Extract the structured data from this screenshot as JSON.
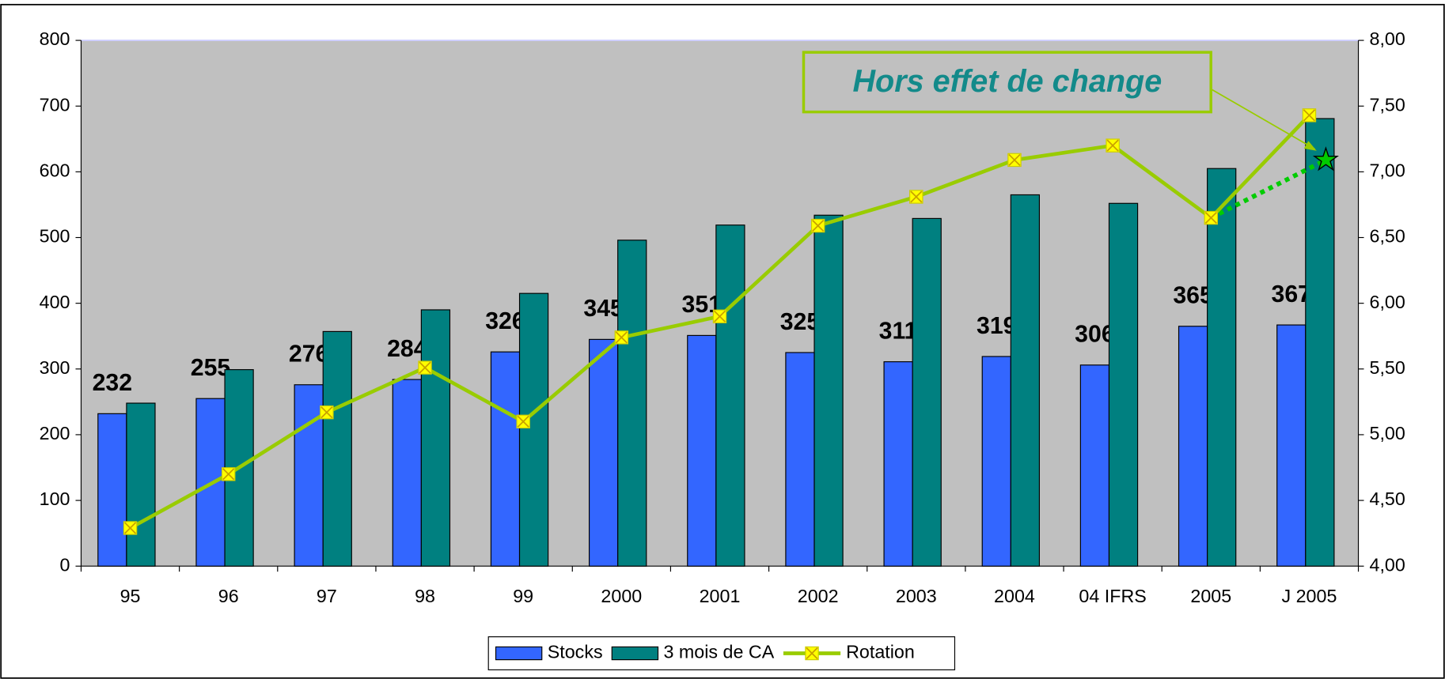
{
  "chart_data": {
    "type": "bar",
    "categories": [
      "95",
      "96",
      "97",
      "98",
      "99",
      "2000",
      "2001",
      "2002",
      "2003",
      "2004",
      "04 IFRS",
      "2005",
      "J 2005"
    ],
    "series": [
      {
        "name": "Stocks",
        "color": "#3366ff",
        "type": "bar",
        "values": [
          232,
          255,
          276,
          284,
          326,
          345,
          351,
          325,
          311,
          319,
          306,
          365,
          367
        ]
      },
      {
        "name": "3 mois de CA",
        "color": "#008080",
        "type": "bar",
        "values": [
          248,
          299,
          357,
          390,
          415,
          496,
          519,
          534,
          529,
          565,
          552,
          605,
          681
        ]
      },
      {
        "name": "Rotation",
        "color": "#99cc00",
        "marker_color": "#ffff00",
        "type": "line",
        "axis": "y2",
        "values": [
          4.29,
          4.7,
          5.17,
          5.51,
          5.1,
          5.74,
          5.9,
          6.59,
          6.81,
          7.09,
          7.2,
          6.65,
          7.43
        ]
      }
    ],
    "annotation": {
      "text": "Hors effet de change",
      "value": 7.09,
      "color": "#00cc00"
    },
    "ylim": [
      0,
      800
    ],
    "yticks": [
      0,
      100,
      200,
      300,
      400,
      500,
      600,
      700,
      800
    ],
    "y2lim": [
      4,
      8
    ],
    "y2ticks": [
      {
        "value": 4,
        "label": "4,00"
      },
      {
        "value": 4.5,
        "label": "4,50"
      },
      {
        "value": 5,
        "label": "5,00"
      },
      {
        "value": 5.5,
        "label": "5,50"
      },
      {
        "value": 6,
        "label": "6,00"
      },
      {
        "value": 6.5,
        "label": "6,50"
      },
      {
        "value": 7,
        "label": "7,00"
      },
      {
        "value": 7.5,
        "label": "7,50"
      },
      {
        "value": 8,
        "label": "8,00"
      }
    ],
    "plot_background": "#c0c0c0",
    "legend": "bottom"
  }
}
